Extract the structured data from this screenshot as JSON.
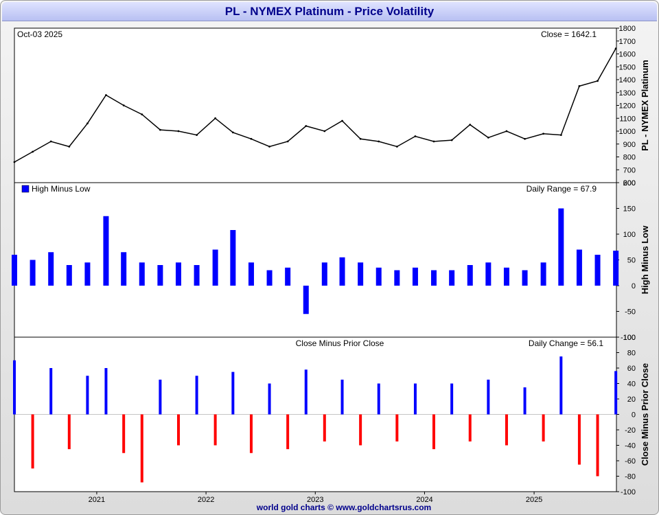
{
  "title": "PL  -  NYMEX Platinum - Price Volatility",
  "footer": "world gold charts © www.goldchartsrus.com",
  "colors": {
    "title": "#00008b",
    "price_line": "#000000",
    "range_bars": "#0000ff",
    "up_bars": "#0000ff",
    "down_bars": "#ff0000"
  },
  "chart_data": [
    {
      "type": "line",
      "panel": "price",
      "date_label": "Oct-03  2025",
      "value_label": "Close = 1642.1",
      "ylabel": "PL  -  NYMEX Platinum",
      "ylim": [
        600,
        1800
      ],
      "yticks": [
        600,
        700,
        800,
        900,
        1000,
        1100,
        1200,
        1300,
        1400,
        1500,
        1600,
        1700,
        1800
      ],
      "x": [
        "2020-04",
        "2020-06",
        "2020-08",
        "2020-10",
        "2020-12",
        "2021-02",
        "2021-04",
        "2021-06",
        "2021-08",
        "2021-10",
        "2021-12",
        "2022-02",
        "2022-04",
        "2022-06",
        "2022-08",
        "2022-10",
        "2022-12",
        "2023-02",
        "2023-04",
        "2023-06",
        "2023-08",
        "2023-10",
        "2023-12",
        "2024-02",
        "2024-04",
        "2024-06",
        "2024-08",
        "2024-10",
        "2024-12",
        "2025-02",
        "2025-04",
        "2025-06",
        "2025-08",
        "2025-10"
      ],
      "series": [
        {
          "values": [
            760,
            840,
            920,
            880,
            1060,
            1280,
            1200,
            1130,
            1010,
            1000,
            970,
            1100,
            990,
            940,
            880,
            920,
            1040,
            1000,
            1080,
            940,
            920,
            880,
            960,
            920,
            930,
            1050,
            950,
            1000,
            940,
            980,
            970,
            1350,
            1390,
            1642.1
          ]
        }
      ]
    },
    {
      "type": "bar",
      "panel": "range",
      "legend": [
        "High Minus Low"
      ],
      "value_label": "Daily Range = 67.9",
      "ylabel": "High Minus Low",
      "ylim": [
        -100,
        200
      ],
      "yticks": [
        -100,
        -50,
        0,
        50,
        100,
        150,
        200
      ],
      "x": [
        "2020-04",
        "2020-06",
        "2020-08",
        "2020-10",
        "2020-12",
        "2021-02",
        "2021-04",
        "2021-06",
        "2021-08",
        "2021-10",
        "2021-12",
        "2022-02",
        "2022-04",
        "2022-06",
        "2022-08",
        "2022-10",
        "2022-12",
        "2023-02",
        "2023-04",
        "2023-06",
        "2023-08",
        "2023-10",
        "2023-12",
        "2024-02",
        "2024-04",
        "2024-06",
        "2024-08",
        "2024-10",
        "2024-12",
        "2025-02",
        "2025-04",
        "2025-06",
        "2025-08",
        "2025-10"
      ],
      "values": [
        60,
        50,
        65,
        40,
        45,
        135,
        65,
        45,
        40,
        45,
        40,
        70,
        108,
        45,
        30,
        35,
        -55,
        45,
        55,
        45,
        35,
        30,
        35,
        30,
        30,
        40,
        45,
        35,
        30,
        45,
        150,
        70,
        60,
        67.9
      ]
    },
    {
      "type": "bar",
      "panel": "change",
      "title": "Close Minus Prior Close",
      "value_label": "Daily Change = 56.1",
      "ylabel": "Close Minus Prior Close",
      "ylim": [
        -100,
        100
      ],
      "yticks": [
        -100,
        -80,
        -60,
        -40,
        -20,
        0,
        20,
        40,
        60,
        80,
        100
      ],
      "x": [
        "2020-04",
        "2020-06",
        "2020-08",
        "2020-10",
        "2020-12",
        "2021-02",
        "2021-04",
        "2021-06",
        "2021-08",
        "2021-10",
        "2021-12",
        "2022-02",
        "2022-04",
        "2022-06",
        "2022-08",
        "2022-10",
        "2022-12",
        "2023-02",
        "2023-04",
        "2023-06",
        "2023-08",
        "2023-10",
        "2023-12",
        "2024-02",
        "2024-04",
        "2024-06",
        "2024-08",
        "2024-10",
        "2024-12",
        "2025-02",
        "2025-04",
        "2025-06",
        "2025-08",
        "2025-10"
      ],
      "values": [
        70,
        -70,
        60,
        -45,
        50,
        60,
        -50,
        -88,
        45,
        -40,
        50,
        -40,
        55,
        -50,
        40,
        -45,
        58,
        -35,
        45,
        -40,
        40,
        -35,
        40,
        -45,
        40,
        -35,
        45,
        -40,
        35,
        -35,
        75,
        -65,
        -80,
        56.1
      ]
    }
  ],
  "x_axis": {
    "tick_labels": [
      "2021",
      "2022",
      "2023",
      "2024",
      "2025"
    ]
  }
}
